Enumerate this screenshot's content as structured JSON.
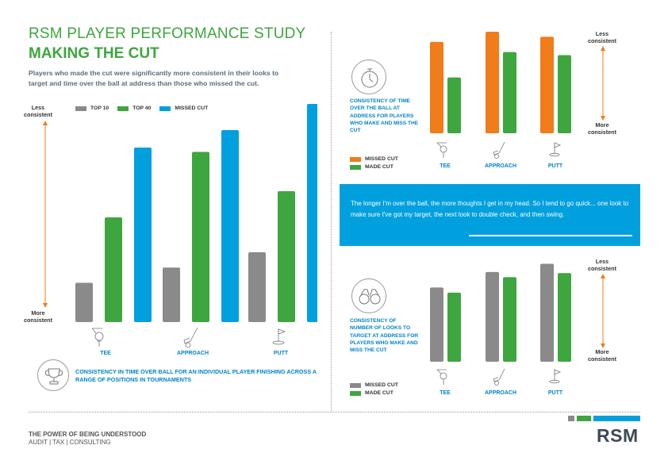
{
  "header": {
    "title": "RSM PLAYER PERFORMANCE STUDY",
    "subtitle": "MAKING THE CUT",
    "intro": "Players who made the cut were significantly more consistent in their looks to target and time over the ball at address than those who missed the cut."
  },
  "axis_words": {
    "less": "Less consistent",
    "more": "More consistent"
  },
  "captions": {
    "left": "CONSISTENCY IN TIME OVER BALL FOR AN INDIVIDUAL PLAYER FINISHING ACROSS A RANGE OF POSITIONS IN TOURNAMENTS",
    "top_right": "CONSISTENCY OF TIME OVER THE BALL AT ADDRESS FOR PLAYERS WHO MAKE AND MISS THE CUT",
    "bottom_right": "CONSISTENCY OF NUMBER OF LOOKS TO TARGET AT ADDRESS FOR PLAYERS WHO MAKE AND MISS THE CUT"
  },
  "quote": "The longer I'm over the ball, the more thoughts I get in my head. So I tend to go quick... one look to make sure I've got my target, the next look to double check, and then swing.",
  "footer": {
    "tagline": "THE POWER OF BEING UNDERSTOOD",
    "services": "AUDIT | TAX | CONSULTING",
    "logo": "RSM"
  },
  "colors": {
    "green": "#3ea63f",
    "blue": "#00a0df",
    "grey": "#8a8a8a",
    "orange": "#f07c1a",
    "text_blue": "#0084c8"
  },
  "icons": {
    "left_caption": "trophy-icon",
    "top_right": "stopwatch-icon",
    "bottom_right": "binoculars-icon",
    "categories": [
      "tee-golf-icon",
      "iron-club-icon",
      "flag-putt-icon"
    ]
  },
  "chart_data": [
    {
      "type": "bar",
      "categories": [
        "TEE",
        "APPROACH",
        "PUTT"
      ],
      "series": [
        {
          "name": "TOP 10",
          "color": "#8a8a8a",
          "values": [
            18,
            25,
            32
          ]
        },
        {
          "name": "TOP 40",
          "color": "#3ea63f",
          "values": [
            48,
            78,
            60
          ]
        },
        {
          "name": "MISSED CUT",
          "color": "#00a0df",
          "values": [
            80,
            88,
            100
          ]
        }
      ],
      "ylim": [
        0,
        100
      ],
      "legend": "top",
      "grid": false
    },
    {
      "type": "bar",
      "categories": [
        "TEE",
        "APPROACH",
        "PUTT"
      ],
      "series": [
        {
          "name": "MISSED CUT",
          "color": "#f07c1a",
          "values": [
            90,
            100,
            95
          ]
        },
        {
          "name": "MADE CUT",
          "color": "#3ea63f",
          "values": [
            55,
            80,
            77
          ]
        }
      ],
      "ylim": [
        0,
        100
      ],
      "legend": "bottom-left",
      "grid": false
    },
    {
      "type": "bar",
      "categories": [
        "TEE",
        "APPROACH",
        "PUTT"
      ],
      "series": [
        {
          "name": "MISSED CUT",
          "color": "#8a8a8a",
          "values": [
            72,
            87,
            95
          ]
        },
        {
          "name": "MADE CUT",
          "color": "#3ea63f",
          "values": [
            67,
            82,
            86
          ]
        }
      ],
      "ylim": [
        0,
        100
      ],
      "legend": "bottom-left",
      "grid": false
    }
  ]
}
